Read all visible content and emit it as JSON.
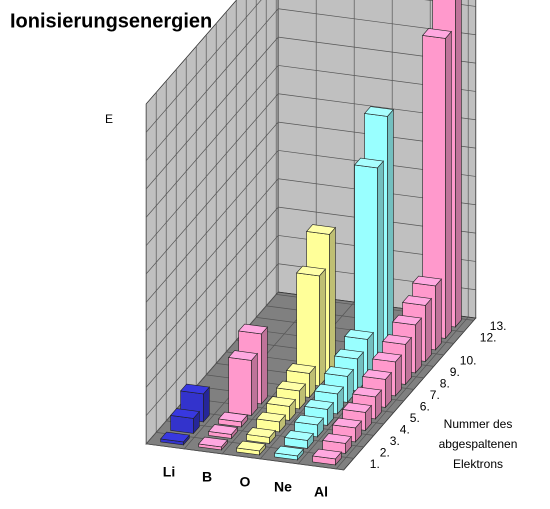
{
  "chart_data": {
    "type": "bar3d",
    "title": "Ionisierungsenergien",
    "y_label": "E",
    "depth_label": [
      "Nummer des",
      "abgespaltenen",
      "Elektrons"
    ],
    "depth_categories": [
      "1.",
      "2.",
      "3.",
      "4.",
      "5.",
      "6.",
      "7.",
      "8.",
      "9.",
      "10.",
      null,
      "12.",
      "13."
    ],
    "series": [
      {
        "name": "Li",
        "color": "#3333cc",
        "values": [
          3,
          15,
          28,
          null,
          null,
          null,
          null,
          null,
          null,
          null,
          null,
          null,
          null
        ]
      },
      {
        "name": "B",
        "color": "#ff99cc",
        "values": [
          3,
          4,
          5,
          55,
          70,
          null,
          null,
          null,
          null,
          null,
          null,
          null,
          null
        ]
      },
      {
        "name": "O",
        "color": "#ffff99",
        "values": [
          4,
          6,
          10,
          14,
          18,
          24,
          110,
          140,
          null,
          null,
          null,
          null,
          null
        ]
      },
      {
        "name": "Ne",
        "color": "#99ffff",
        "values": [
          4,
          8,
          12,
          16,
          20,
          26,
          32,
          40,
          200,
          240,
          null,
          null,
          null
        ]
      },
      {
        "name": "Al",
        "color": "#ff99cc",
        "values": [
          6,
          10,
          14,
          18,
          22,
          28,
          34,
          40,
          48,
          56,
          64,
          300,
          345
        ]
      }
    ]
  }
}
